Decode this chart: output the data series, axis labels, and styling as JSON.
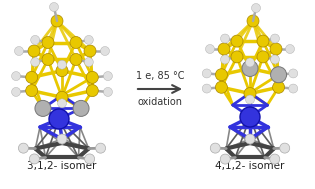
{
  "background_color": "#ffffff",
  "arrow_text_line1": "1 e, 85 °C",
  "arrow_text_line2": "oxidation",
  "label_left": "3,1,2- isomer",
  "label_right": "4,1,2- isomer",
  "color_blue": "#3333dd",
  "color_yellow": "#e8c800",
  "color_gray": "#b0b0b0",
  "color_dark": "#444444",
  "color_white_sphere": "#e0e0e0",
  "color_arrow": "#555555",
  "figsize": [
    3.15,
    1.89
  ],
  "dpi": 100
}
